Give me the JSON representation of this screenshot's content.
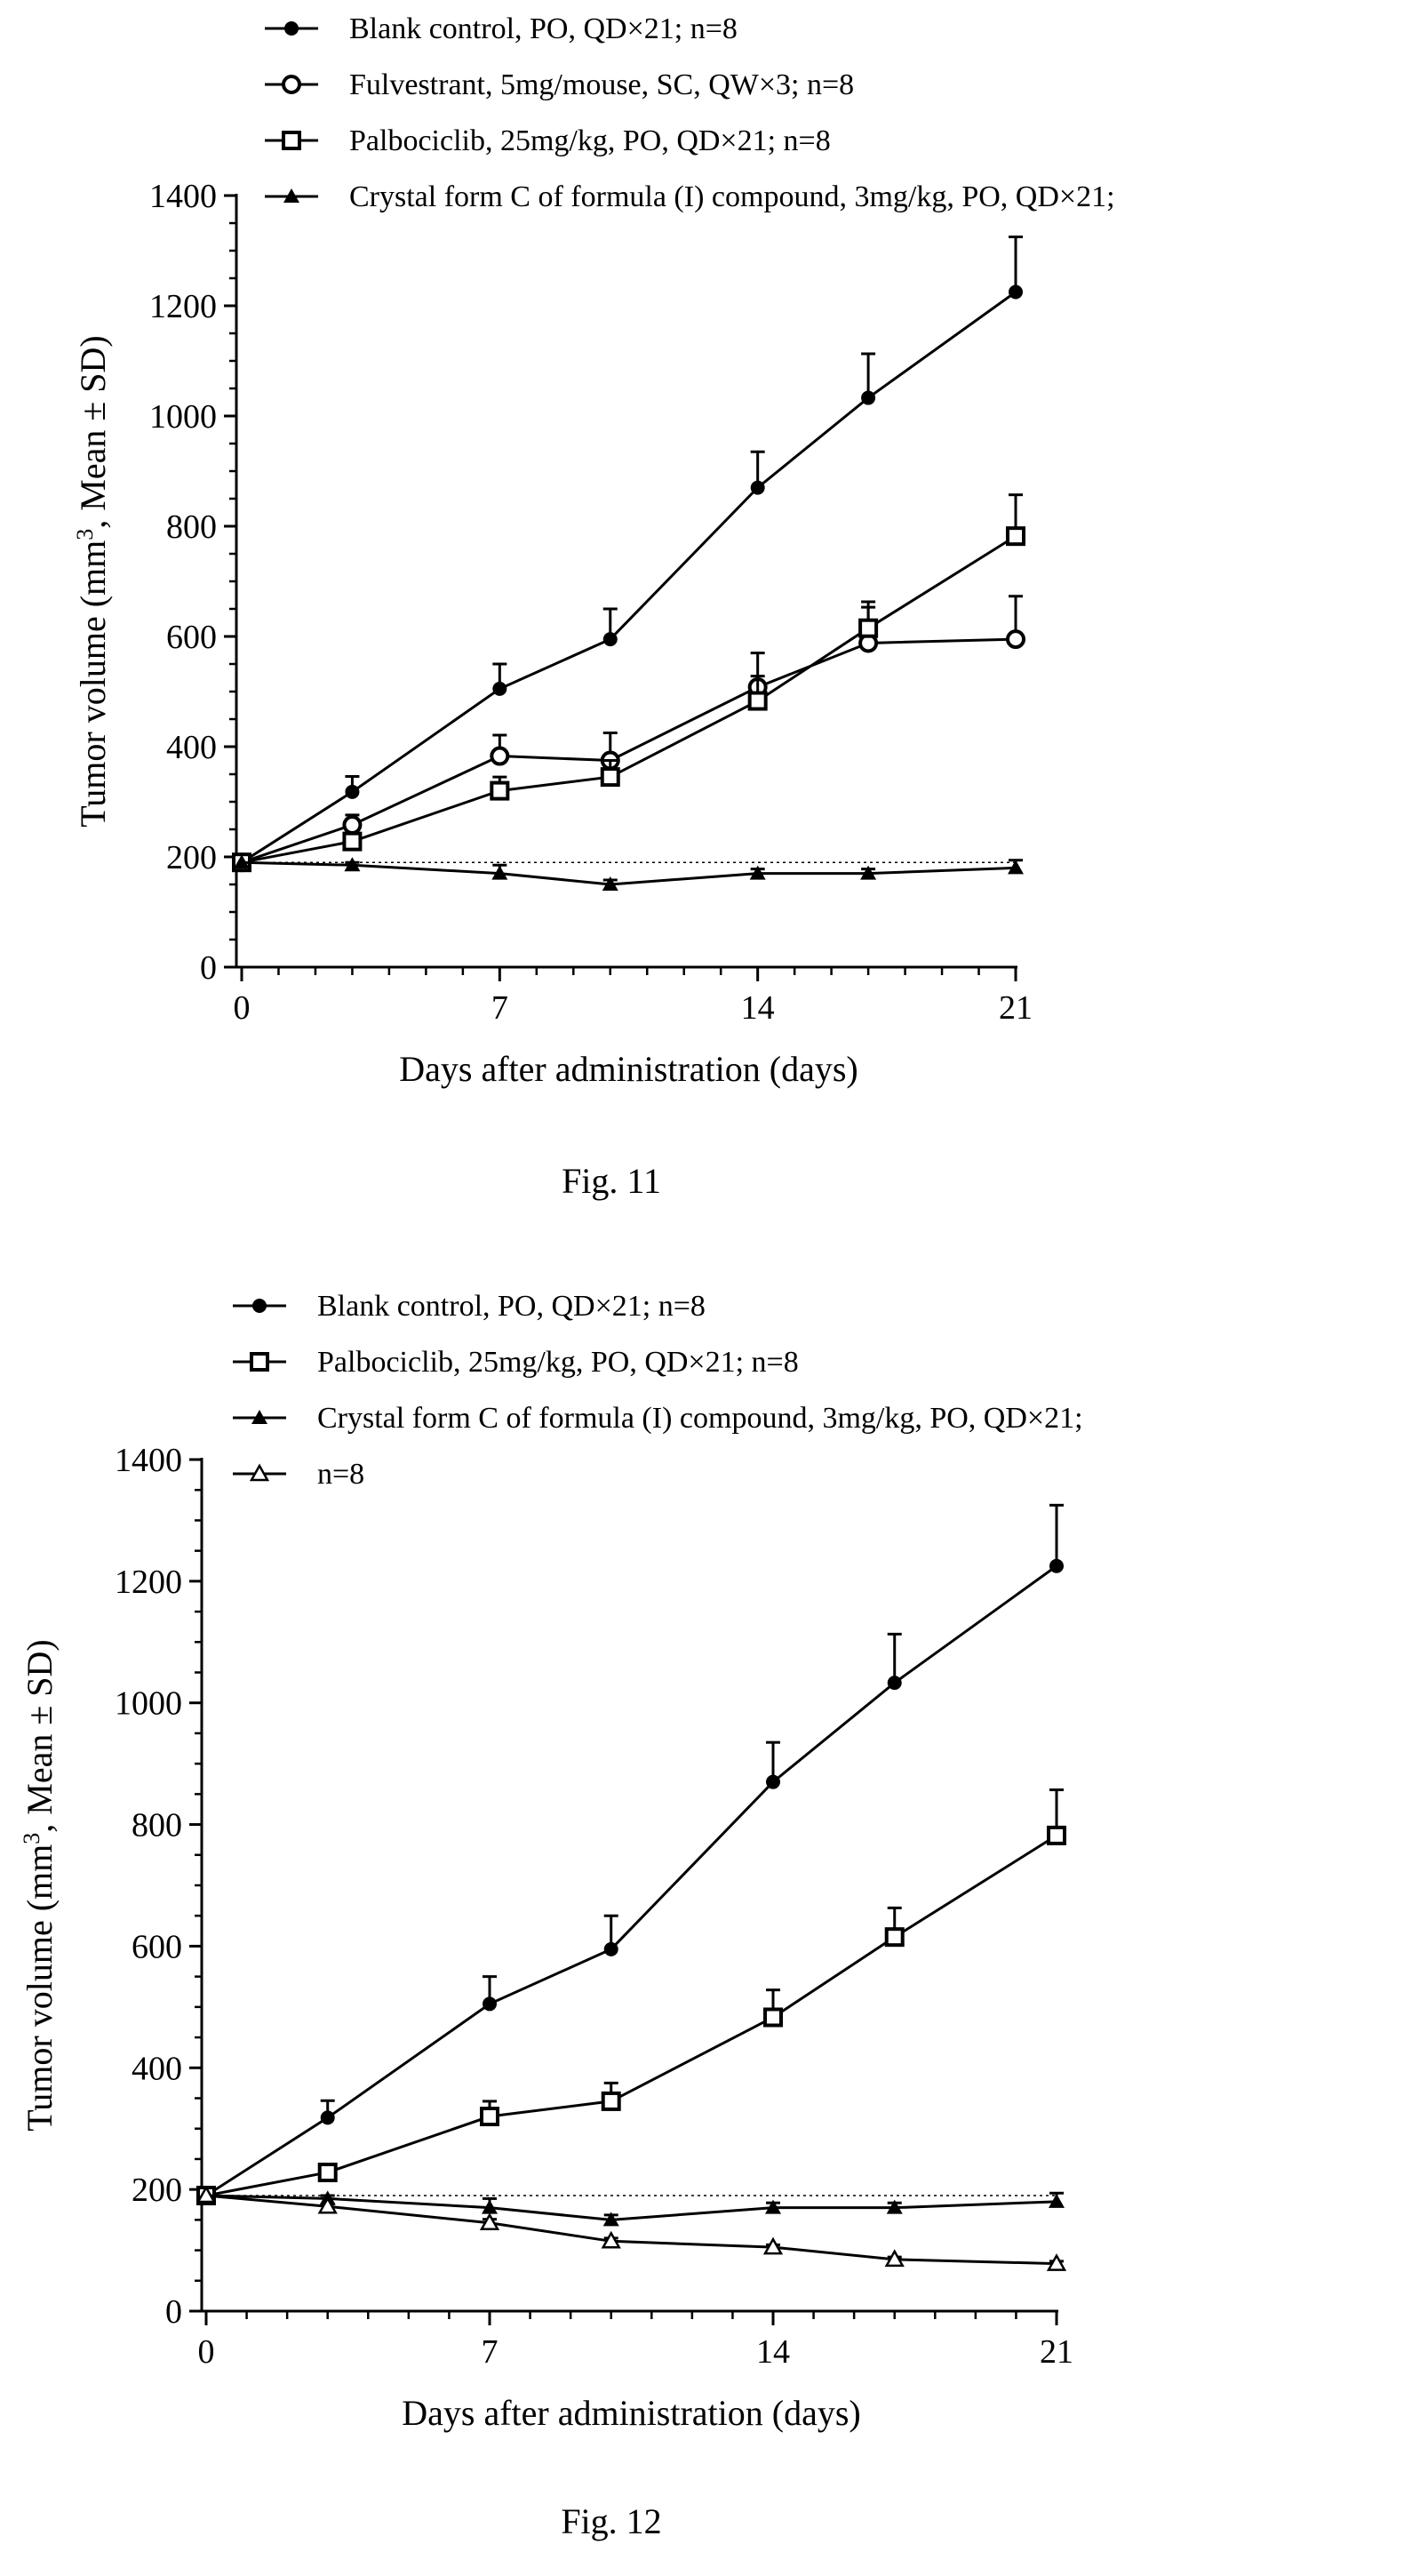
{
  "chart_data": [
    {
      "type": "line",
      "caption": "Fig. 11",
      "xlabel": "Days after administration (days)",
      "ylabel_parts": [
        "Tumor volume (mm",
        "3",
        ", Mean ± SD)"
      ],
      "xlim": [
        0,
        21
      ],
      "ylim": [
        0,
        1400
      ],
      "xticks": [
        0,
        7,
        14,
        21
      ],
      "yticks": [
        0,
        200,
        400,
        600,
        800,
        1000,
        1200,
        1400
      ],
      "reference_line": 190,
      "legend_position": "top-left, above plot",
      "x": [
        0,
        3,
        7,
        10,
        14,
        17,
        21
      ],
      "series": [
        {
          "name": "Blank control, PO, QD×21; n=8",
          "marker": "filled-circle",
          "values": [
            190,
            318,
            505,
            595,
            870,
            1033,
            1225
          ],
          "error": [
            0,
            28,
            45,
            55,
            65,
            80,
            100
          ]
        },
        {
          "name": "Fulvestrant, 5mg/mouse, SC, QW×3; n=8",
          "marker": "open-circle",
          "values": [
            190,
            258,
            383,
            375,
            508,
            588,
            595
          ],
          "error": [
            0,
            18,
            38,
            50,
            62,
            65,
            78
          ]
        },
        {
          "name": "Palbociclib, 25mg/kg, PO, QD×21; n=8",
          "marker": "open-square",
          "values": [
            190,
            228,
            320,
            345,
            483,
            615,
            782
          ],
          "error": [
            0,
            12,
            25,
            30,
            45,
            48,
            75
          ]
        },
        {
          "name": "Crystal form C of formula (I) compound, 3mg/kg, PO, QD×21;",
          "marker": "filled-triangle",
          "values": [
            190,
            185,
            170,
            150,
            170,
            170,
            180
          ],
          "error": [
            0,
            5,
            15,
            8,
            8,
            8,
            14
          ]
        }
      ]
    },
    {
      "type": "line",
      "caption": "Fig. 12",
      "xlabel": "Days after administration (days)",
      "ylabel_parts": [
        "Tumor volume (mm",
        "3",
        ", Mean ± SD)"
      ],
      "xlim": [
        0,
        21
      ],
      "ylim": [
        0,
        1400
      ],
      "xticks": [
        0,
        7,
        14,
        21
      ],
      "yticks": [
        0,
        200,
        400,
        600,
        800,
        1000,
        1200,
        1400
      ],
      "reference_line": 190,
      "legend_position": "top-left, above plot",
      "x": [
        0,
        3,
        7,
        10,
        14,
        17,
        21
      ],
      "series": [
        {
          "name": "Blank control, PO, QD×21; n=8",
          "marker": "filled-circle",
          "values": [
            190,
            318,
            505,
            595,
            870,
            1033,
            1225
          ],
          "error": [
            0,
            28,
            45,
            55,
            65,
            80,
            100
          ]
        },
        {
          "name": "Palbociclib, 25mg/kg, PO, QD×21; n=8",
          "marker": "open-square",
          "values": [
            190,
            228,
            320,
            345,
            483,
            615,
            782
          ],
          "error": [
            0,
            12,
            25,
            30,
            45,
            48,
            75
          ]
        },
        {
          "name": "Crystal form C of formula (I) compound, 3mg/kg, PO, QD×21;",
          "marker": "filled-triangle",
          "values": [
            190,
            185,
            170,
            150,
            170,
            170,
            180
          ],
          "error": [
            0,
            5,
            15,
            8,
            8,
            8,
            14
          ]
        },
        {
          "name": "n=8",
          "marker": "open-triangle",
          "values": [
            190,
            172,
            145,
            115,
            105,
            85,
            78
          ],
          "error": [
            0,
            4,
            6,
            5,
            4,
            4,
            4
          ]
        }
      ]
    }
  ]
}
